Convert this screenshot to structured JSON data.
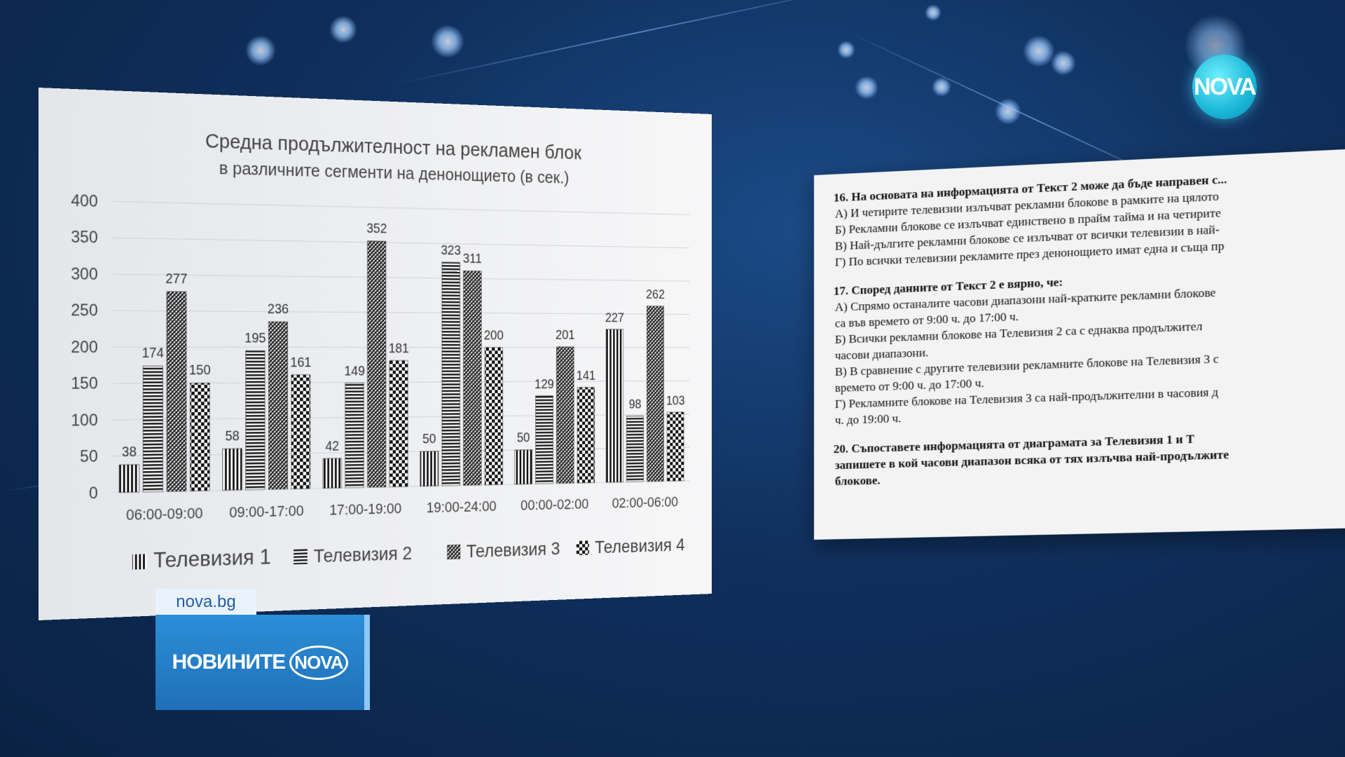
{
  "brand": {
    "logo_text": "NOVA",
    "site": "nova.bg",
    "program_label": "НОВИНИТЕ",
    "program_nova": "NOVA"
  },
  "chart_data": {
    "type": "bar",
    "title": "Средна продължителност на рекламен блок",
    "subtitle": "в различните сегменти на денонощието (в сек.)",
    "categories": [
      "06:00-09:00",
      "09:00-17:00",
      "17:00-19:00",
      "19:00-24:00",
      "00:00-02:00",
      "02:00-06:00"
    ],
    "series": [
      {
        "name": "Телевизия 1",
        "values": [
          38,
          58,
          42,
          50,
          50,
          227
        ],
        "pattern": "vertical"
      },
      {
        "name": "Телевизия 2",
        "values": [
          174,
          195,
          149,
          323,
          129,
          98
        ],
        "pattern": "horizontal"
      },
      {
        "name": "Телевизия 3",
        "values": [
          277,
          236,
          352,
          311,
          201,
          262
        ],
        "pattern": "diagonal"
      },
      {
        "name": "Телевизия 4",
        "values": [
          150,
          161,
          181,
          200,
          141,
          103
        ],
        "pattern": "checker"
      }
    ],
    "y_ticks": [
      0,
      50,
      100,
      150,
      200,
      250,
      300,
      350,
      400
    ],
    "ylim": [
      0,
      400
    ],
    "grid": true,
    "legend": "bottom"
  },
  "document": {
    "questions": [
      {
        "title": "16. На основата на информацията от Текст 2 може да бъде направен с...",
        "answers": [
          "А) И четирите телевизии излъчват рекламни блокове в рамките на цялото",
          "Б) Рекламни блокове се излъчват единствено в прайм тайма и на четирите",
          "В) Най-дългите рекламни блокове се излъчват от всички телевизии в най-",
          "Г) По всички телевизии рекламите през денонощието имат една и съща пр"
        ]
      },
      {
        "title": "17. Според данните от Текст 2 е вярно, че:",
        "answers": [
          "А) Спрямо останалите часови диапазони най-кратките рекламни блокове",
          "са във времето от 9:00 ч. до 17:00 ч.",
          "Б) Всички рекламни блокове на Телевизия 2 са с еднаква продължител",
          "часови диапазони.",
          "В) В сравнение с другите телевизии рекламните блокове на Телевизия 3 с",
          "времето от 9:00 ч. до 17:00 ч.",
          "Г) Рекламните блокове на Телевизия 3 са най-продължителни в часовия д",
          "ч. до 19:00 ч."
        ]
      },
      {
        "title": "20. Съпоставете информацията от диаграмата за Телевизия 1 и Т",
        "answers": [
          "запишете в кой часови диапазон всяка от тях излъчва най-продължите",
          "блокове."
        ]
      }
    ]
  }
}
